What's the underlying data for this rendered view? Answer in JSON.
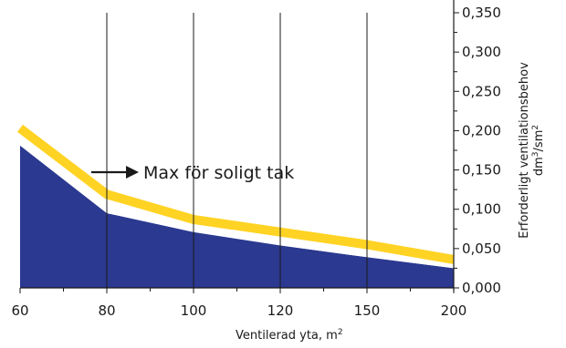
{
  "chart_data": {
    "type": "area",
    "x_categories": [
      "60",
      "80",
      "100",
      "120",
      "150",
      "200"
    ],
    "series": [
      {
        "values": [
          0.181,
          0.095,
          0.071,
          0.054,
          0.039,
          0.025
        ],
        "color": "#2b3990",
        "style": "filled-area"
      },
      {
        "values": [
          0.203,
          0.119,
          0.087,
          0.071,
          0.055,
          0.036
        ],
        "color": "#ffd324",
        "style": "thick-band"
      }
    ],
    "y_ticks": [
      "0,000",
      "0,050",
      "0,100",
      "0,150",
      "0,200",
      "0,250",
      "0,300",
      "0,350"
    ],
    "ylim": [
      0,
      0.35
    ],
    "xlabel": "Ventilerad yta, m",
    "xlabel_superscript": "2",
    "ylabel_line1": "Erforderligt ventilationsbehov",
    "ylabel_line2_prefix": "dm",
    "ylabel_line2_sup1": "3",
    "ylabel_line2_mid": "/sm",
    "ylabel_line2_sup2": "2",
    "annotation": "Max för soligt tak",
    "grid": "vertical",
    "axis_color": "#1a1a1a"
  }
}
